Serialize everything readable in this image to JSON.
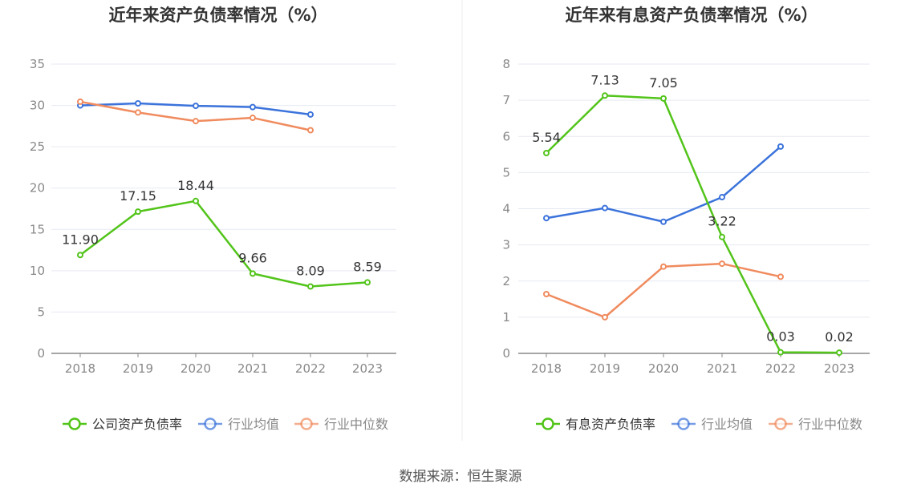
{
  "colors": {
    "company": "#52c41a",
    "industry_avg": "#3b73db",
    "industry_median": "#f08b5e",
    "grid": "#e6e9f2",
    "axis": "#888888",
    "divider": "#eeeeee"
  },
  "source_text": "数据来源：恒生聚源",
  "chart_data": [
    {
      "type": "line",
      "title": "近年来资产负债率情况（%）",
      "categories": [
        "2018",
        "2019",
        "2020",
        "2021",
        "2022",
        "2023"
      ],
      "ylim": [
        0,
        35
      ],
      "yticks": [
        "0",
        "5",
        "10",
        "15",
        "20",
        "25",
        "30",
        "35"
      ],
      "grid": true,
      "legend_position": "bottom",
      "series": [
        {
          "name": "公司资产负债率",
          "color_key": "company",
          "values": [
            11.9,
            17.15,
            18.44,
            9.66,
            8.09,
            8.59
          ],
          "labels": [
            "11.90",
            "17.15",
            "18.44",
            "9.66",
            "8.09",
            "8.59"
          ]
        },
        {
          "name": "行业均值",
          "color_key": "industry_avg",
          "values": [
            30.0,
            30.25,
            29.95,
            29.8,
            28.9,
            null
          ]
        },
        {
          "name": "行业中位数",
          "color_key": "industry_median",
          "values": [
            30.45,
            29.15,
            28.1,
            28.5,
            27.0,
            null
          ]
        }
      ]
    },
    {
      "type": "line",
      "title": "近年来有息资产负债率情况（%）",
      "categories": [
        "2018",
        "2019",
        "2020",
        "2021",
        "2022",
        "2023"
      ],
      "ylim": [
        0,
        8
      ],
      "yticks": [
        "0",
        "1",
        "2",
        "3",
        "4",
        "5",
        "6",
        "7",
        "8"
      ],
      "grid": true,
      "legend_position": "bottom",
      "series": [
        {
          "name": "有息资产负债率",
          "color_key": "company",
          "values": [
            5.54,
            7.13,
            7.05,
            3.22,
            0.03,
            0.02
          ],
          "labels": [
            "5.54",
            "7.13",
            "7.05",
            "3.22",
            "0.03",
            "0.02"
          ]
        },
        {
          "name": "行业均值",
          "color_key": "industry_avg",
          "values": [
            3.74,
            4.02,
            3.64,
            4.32,
            5.72,
            null
          ]
        },
        {
          "name": "行业中位数",
          "color_key": "industry_median",
          "values": [
            1.64,
            1.0,
            2.4,
            2.48,
            2.12,
            null
          ]
        }
      ]
    }
  ]
}
